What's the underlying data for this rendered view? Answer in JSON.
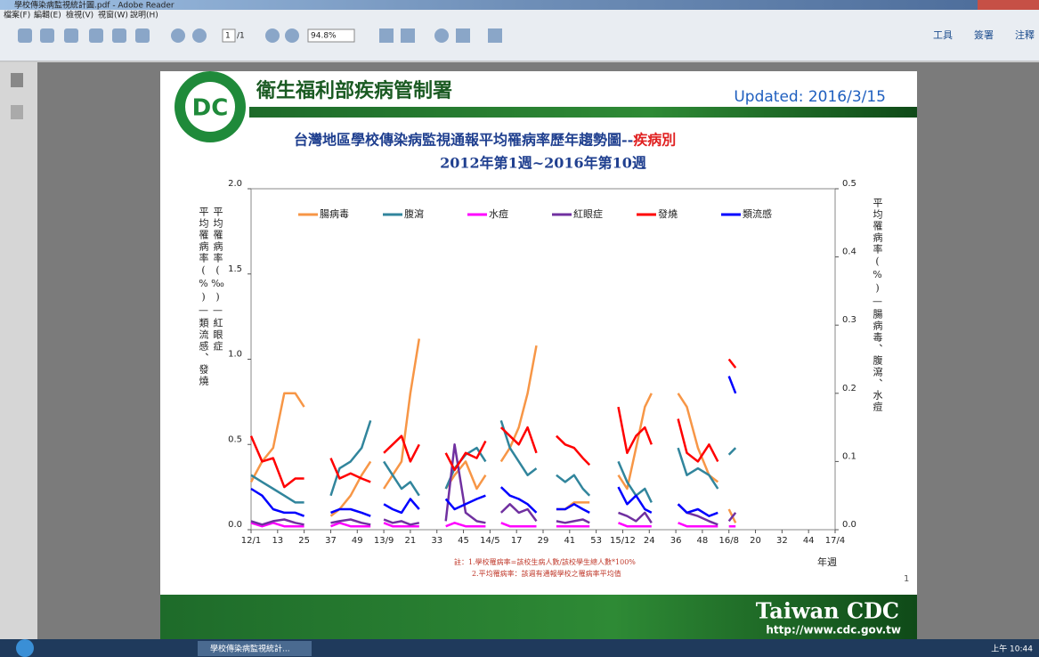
{
  "window": {
    "title": "學校傳染病監視統計圖.pdf - Adobe Reader",
    "menu": [
      "檔案(F)",
      "編輯(E)",
      "檢視(V)",
      "視窗(W)",
      "說明(H)"
    ],
    "toolbar": {
      "page": "1",
      "page_total": "/1",
      "zoom": "94.8%",
      "right": [
        "工具",
        "簽署",
        "注釋"
      ]
    }
  },
  "taskbar": {
    "task": "學校傳染病監視統計...",
    "clock": "上午 10:44"
  },
  "document": {
    "header": {
      "org": "衛生福利部疾病管制署",
      "updated": "Updated: 2016/3/15",
      "logo": "DC"
    },
    "notes": [
      "註：1.學校罹病率=該校生病人數/該校學生總人數*100%",
      "2.平均罹病率：該週有通報學校之罹病率平均值"
    ],
    "page_number": "1",
    "footer": {
      "brand": "Taiwan CDC",
      "url": "http://www.cdc.gov.tw"
    }
  },
  "chart_data": {
    "type": "line",
    "title": "台灣地區學校傳染病監視通報平均罹病率歷年趨勢圖--",
    "title_highlight": "疾病別",
    "subtitle": "2012年第1週~2016年第10週",
    "ylabel": "平均罹病率(%)—類流感、發燒",
    "ylabel2": "平均罹病率(‰)—紅眼症",
    "y2label": "平均罹病率(%)—腸病毒、腹瀉、水痘",
    "xlabel": "年週",
    "x": [
      0,
      5,
      10,
      15,
      20,
      24,
      30,
      36,
      40,
      45,
      50,
      54,
      57,
      60,
      64,
      68,
      72,
      76,
      82,
      88,
      92,
      97,
      102,
      106,
      110,
      113,
      117,
      121,
      125,
      129,
      134,
      138,
      142,
      146,
      150,
      153,
      160,
      166,
      170,
      174,
      178,
      181,
      187,
      193,
      197,
      202,
      207,
      211,
      214,
      216,
      219
    ],
    "xlim": [
      0,
      264
    ],
    "xticks": [
      {
        "value": 0,
        "label": "12/1"
      },
      {
        "value": 12,
        "label": "13"
      },
      {
        "value": 24,
        "label": "25"
      },
      {
        "value": 36,
        "label": "37"
      },
      {
        "value": 48,
        "label": "49"
      },
      {
        "value": 60,
        "label": "13/9"
      },
      {
        "value": 72,
        "label": "21"
      },
      {
        "value": 84,
        "label": "33"
      },
      {
        "value": 96,
        "label": "45"
      },
      {
        "value": 108,
        "label": "14/5"
      },
      {
        "value": 120,
        "label": "17"
      },
      {
        "value": 132,
        "label": "29"
      },
      {
        "value": 144,
        "label": "41"
      },
      {
        "value": 156,
        "label": "53"
      },
      {
        "value": 168,
        "label": "15/12"
      },
      {
        "value": 180,
        "label": "24"
      },
      {
        "value": 192,
        "label": "36"
      },
      {
        "value": 204,
        "label": "48"
      },
      {
        "value": 216,
        "label": "16/8"
      },
      {
        "value": 228,
        "label": "20"
      },
      {
        "value": 240,
        "label": "32"
      },
      {
        "value": 252,
        "label": "44"
      },
      {
        "value": 264,
        "label": "17/4"
      }
    ],
    "ylim": [
      0,
      2
    ],
    "yticks": [
      {
        "value": 0,
        "label": "0.0"
      },
      0.5,
      {
        "value": 1,
        "label": "1.0"
      },
      1.5,
      {
        "value": 2,
        "label": "2.0"
      }
    ],
    "y2lim": [
      0,
      0.5
    ],
    "y2ticks": [
      {
        "value": 0,
        "label": "0.0"
      },
      0.1,
      0.2,
      0.3,
      0.4,
      0.5
    ],
    "series": [
      {
        "name": "腸病毒",
        "color": "#f79646",
        "axis": "y2",
        "values": [
          0.07,
          0.1,
          0.12,
          0.2,
          0.2,
          0.18,
          null,
          0.02,
          0.03,
          0.05,
          0.08,
          0.1,
          null,
          0.06,
          0.08,
          0.1,
          0.2,
          0.28,
          null,
          0.06,
          0.08,
          0.1,
          0.06,
          0.08,
          null,
          0.1,
          0.12,
          0.15,
          0.2,
          0.27,
          null,
          0.03,
          0.03,
          0.04,
          0.04,
          0.04,
          null,
          0.08,
          0.06,
          0.12,
          0.18,
          0.2,
          null,
          0.2,
          0.18,
          0.12,
          0.08,
          0.07,
          null,
          0.03,
          0.01
        ]
      },
      {
        "name": "腹瀉",
        "color": "#31859c",
        "axis": "y2",
        "values": [
          0.08,
          0.07,
          0.06,
          0.05,
          0.04,
          0.04,
          null,
          0.05,
          0.09,
          0.1,
          0.12,
          0.16,
          null,
          0.1,
          0.08,
          0.06,
          0.07,
          0.05,
          null,
          0.06,
          0.09,
          0.11,
          0.12,
          0.1,
          null,
          0.16,
          0.12,
          0.1,
          0.08,
          0.09,
          null,
          0.08,
          0.07,
          0.08,
          0.06,
          0.05,
          null,
          0.1,
          0.07,
          0.05,
          0.06,
          0.04,
          null,
          0.12,
          0.08,
          0.09,
          0.08,
          0.06,
          null,
          0.11,
          0.12
        ]
      },
      {
        "name": "水痘",
        "color": "#ff00ff",
        "axis": "y2",
        "values": [
          0.01,
          0.005,
          0.01,
          0.005,
          0.005,
          0.005,
          null,
          0.005,
          0.01,
          0.005,
          0.005,
          0.005,
          null,
          0.01,
          0.005,
          0.005,
          0.005,
          0.005,
          null,
          0.005,
          0.01,
          0.005,
          0.005,
          0.005,
          null,
          0.01,
          0.005,
          0.005,
          0.005,
          0.005,
          null,
          0.005,
          0.005,
          0.005,
          0.005,
          0.005,
          null,
          0.01,
          0.005,
          0.005,
          0.005,
          0.005,
          null,
          0.01,
          0.005,
          0.005,
          0.005,
          0.005,
          null,
          0.005,
          0.005
        ]
      },
      {
        "name": "紅眼症",
        "color": "#7030a0",
        "values": [
          0.05,
          0.03,
          0.05,
          0.06,
          0.04,
          0.03,
          null,
          0.04,
          0.05,
          0.06,
          0.04,
          0.03,
          null,
          0.06,
          0.04,
          0.05,
          0.03,
          0.04,
          null,
          0.05,
          0.5,
          0.1,
          0.05,
          0.04,
          null,
          0.1,
          0.15,
          0.1,
          0.12,
          0.05,
          null,
          0.05,
          0.04,
          0.05,
          0.06,
          0.04,
          null,
          0.1,
          0.08,
          0.05,
          0.1,
          0.04,
          null,
          0.15,
          0.1,
          0.08,
          0.05,
          0.03,
          null,
          0.05,
          0.1
        ]
      },
      {
        "name": "發燒",
        "color": "#ff0000",
        "values": [
          0.55,
          0.4,
          0.42,
          0.25,
          0.3,
          0.3,
          null,
          0.42,
          0.3,
          0.33,
          0.3,
          0.28,
          null,
          0.45,
          0.5,
          0.55,
          0.4,
          0.5,
          null,
          0.45,
          0.35,
          0.45,
          0.42,
          0.52,
          null,
          0.6,
          0.55,
          0.5,
          0.6,
          0.45,
          null,
          0.55,
          0.5,
          0.48,
          0.42,
          0.38,
          null,
          0.72,
          0.45,
          0.55,
          0.6,
          0.5,
          null,
          0.65,
          0.45,
          0.4,
          0.5,
          0.4,
          null,
          1.0,
          0.95
        ]
      },
      {
        "name": "類流感",
        "color": "#0000ff",
        "values": [
          0.24,
          0.2,
          0.12,
          0.1,
          0.1,
          0.08,
          null,
          0.1,
          0.12,
          0.12,
          0.1,
          0.08,
          null,
          0.15,
          0.12,
          0.1,
          0.18,
          0.12,
          null,
          0.18,
          0.12,
          0.15,
          0.18,
          0.2,
          null,
          0.25,
          0.2,
          0.18,
          0.15,
          0.1,
          null,
          0.12,
          0.12,
          0.15,
          0.12,
          0.1,
          null,
          0.25,
          0.15,
          0.2,
          0.12,
          0.1,
          null,
          0.15,
          0.1,
          0.12,
          0.08,
          0.1,
          null,
          0.9,
          0.8
        ]
      }
    ]
  }
}
